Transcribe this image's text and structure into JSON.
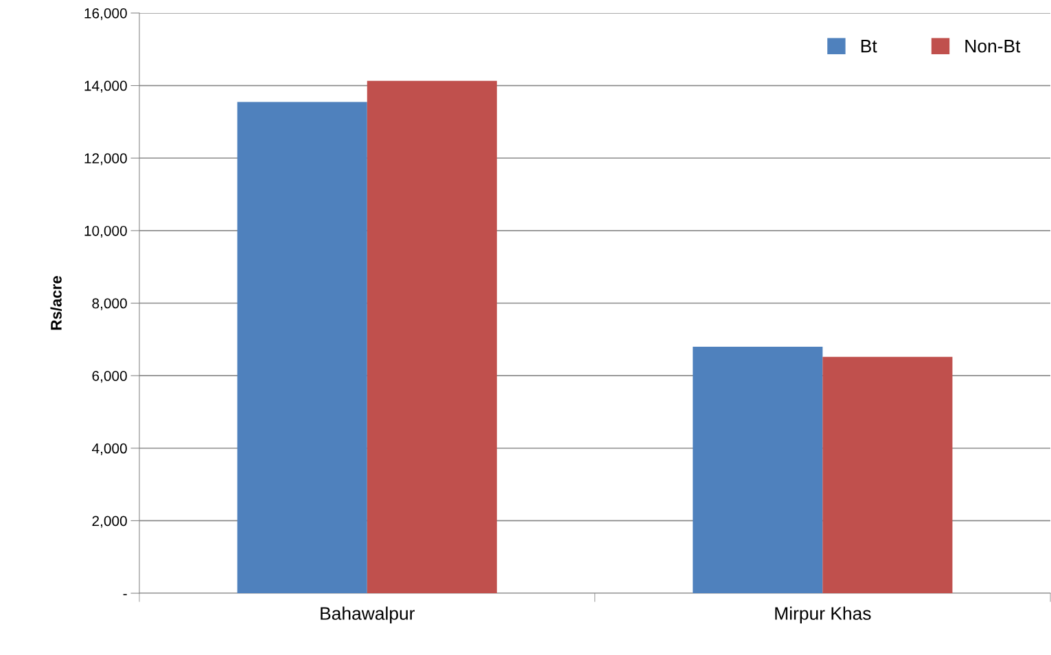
{
  "chart_data": {
    "type": "bar",
    "ylabel": "Rs/acre",
    "categories": [
      "Bahawalpur",
      "Mirpur Khas"
    ],
    "series": [
      {
        "name": "Bt",
        "color": "#4f81bd",
        "values": [
          13550,
          6800
        ]
      },
      {
        "name": "Non-Bt",
        "color": "#c0504d",
        "values": [
          14130,
          6520
        ]
      }
    ],
    "ylim": [
      0,
      16000
    ],
    "yticks": [
      {
        "value": 0,
        "label": "-"
      },
      {
        "value": 2000,
        "label": "2,000"
      },
      {
        "value": 4000,
        "label": "4,000"
      },
      {
        "value": 6000,
        "label": "6,000"
      },
      {
        "value": 8000,
        "label": "8,000"
      },
      {
        "value": 10000,
        "label": "10,000"
      },
      {
        "value": 12000,
        "label": "12,000"
      },
      {
        "value": 14000,
        "label": "14,000"
      },
      {
        "value": 16000,
        "label": "16,000"
      }
    ],
    "grid": "y",
    "legend": "top right"
  }
}
